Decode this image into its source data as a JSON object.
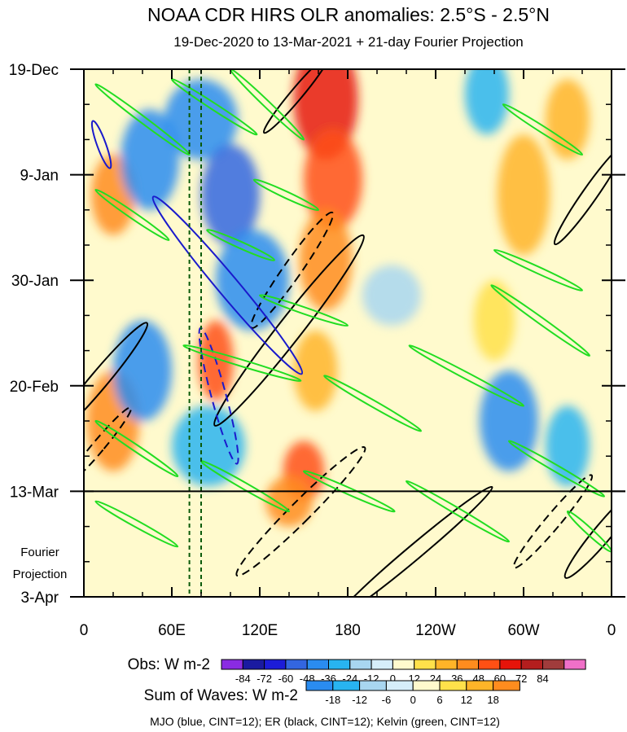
{
  "chart_data": {
    "type": "heatmap",
    "title": "NOAA CDR HIRS OLR anomalies: 2.5°S - 2.5°N",
    "subtitle": "19-Dec-2020 to 13-Mar-2021 + 21-day Fourier Projection",
    "x_ticks": [
      "0",
      "60E",
      "120E",
      "180",
      "120W",
      "60W",
      "0"
    ],
    "y_ticks": [
      "19-Dec",
      "9-Jan",
      "30-Jan",
      "20-Feb",
      "13-Mar",
      "3-Apr"
    ],
    "projection_label": [
      "Fourier",
      "Projection"
    ],
    "obs_legend": {
      "title": "Obs: W m-2",
      "levels": [
        "-84",
        "-72",
        "-60",
        "-48",
        "-36",
        "-24",
        "-12",
        "0",
        "12",
        "24",
        "36",
        "48",
        "60",
        "72",
        "84"
      ],
      "colors": [
        "#8a2be2",
        "#1a1aa0",
        "#1c1cd8",
        "#3366e0",
        "#2a8cf0",
        "#28b4f0",
        "#a8d6f0",
        "#d6eefa",
        "#fffacd",
        "#ffe14a",
        "#ffb428",
        "#ff8c1e",
        "#ff5014",
        "#e6140a",
        "#b41e1e",
        "#a03c3c",
        "#f070c8"
      ]
    },
    "wave_legend": {
      "title": "Sum of Waves: W m-2",
      "levels": [
        "-18",
        "-12",
        "-6",
        "0",
        "6",
        "12",
        "18"
      ],
      "colors": [
        "#2a8cf0",
        "#28b4f0",
        "#a8d6f0",
        "#d6eefa",
        "#fffacd",
        "#ffe14a",
        "#ffb428",
        "#ff8c1e"
      ]
    },
    "footer": "MJO (blue, CINT=12); ER (black, CINT=12); Kelvin (green, CINT=12)",
    "features": [
      {
        "lon": 165,
        "day": 6,
        "value": 60,
        "wlon": 22,
        "wday": 12
      },
      {
        "lon": 170,
        "day": 22,
        "value": 55,
        "wlon": 20,
        "wday": 10
      },
      {
        "lon": 165,
        "day": 38,
        "value": 45,
        "wlon": 18,
        "wday": 10
      },
      {
        "lon": 158,
        "day": 60,
        "value": 35,
        "wlon": 15,
        "wday": 8
      },
      {
        "lon": 150,
        "day": 80,
        "value": 55,
        "wlon": 14,
        "wday": 6
      },
      {
        "lon": 140,
        "day": 86,
        "value": 40,
        "wlon": 16,
        "wday": 5
      },
      {
        "lon": 20,
        "day": 25,
        "value": 40,
        "wlon": 15,
        "wday": 8
      },
      {
        "lon": 20,
        "day": 70,
        "value": 45,
        "wlon": 18,
        "wday": 10
      },
      {
        "lon": 90,
        "day": 58,
        "value": 50,
        "wlon": 12,
        "wday": 8
      },
      {
        "lon": 300,
        "day": 25,
        "value": 30,
        "wlon": 18,
        "wday": 12
      },
      {
        "lon": 330,
        "day": 10,
        "value": 25,
        "wlon": 15,
        "wday": 8
      },
      {
        "lon": 280,
        "day": 50,
        "value": 20,
        "wlon": 14,
        "wday": 8
      },
      {
        "lon": 80,
        "day": 10,
        "value": -40,
        "wlon": 25,
        "wday": 8
      },
      {
        "lon": 45,
        "day": 18,
        "value": -45,
        "wlon": 20,
        "wday": 10
      },
      {
        "lon": 100,
        "day": 25,
        "value": -50,
        "wlon": 20,
        "wday": 10
      },
      {
        "lon": 115,
        "day": 42,
        "value": -40,
        "wlon": 25,
        "wday": 10
      },
      {
        "lon": 40,
        "day": 60,
        "value": -45,
        "wlon": 20,
        "wday": 10
      },
      {
        "lon": 85,
        "day": 75,
        "value": -35,
        "wlon": 25,
        "wday": 8
      },
      {
        "lon": 290,
        "day": 70,
        "value": -40,
        "wlon": 20,
        "wday": 10
      },
      {
        "lon": 330,
        "day": 75,
        "value": -30,
        "wlon": 15,
        "wday": 8
      },
      {
        "lon": 275,
        "day": 5,
        "value": -30,
        "wlon": 15,
        "wday": 8
      },
      {
        "lon": 210,
        "day": 45,
        "value": -20,
        "wlon": 20,
        "wday": 6
      }
    ],
    "mjo_contours": [
      {
        "cx": 98,
        "cy": 43,
        "rx": 7,
        "ry": 23,
        "rot": -40,
        "dash": false
      },
      {
        "cx": 92,
        "cy": 65,
        "rx": 5,
        "ry": 14,
        "rot": -15,
        "dash": true
      },
      {
        "cx": 12,
        "cy": 15,
        "rx": 3,
        "ry": 5,
        "rot": -20,
        "dash": false
      }
    ],
    "er_contours": [
      {
        "cx": 140,
        "cy": 52,
        "rx": 8,
        "ry": 24,
        "rot": 38,
        "dash": false
      },
      {
        "cx": 142,
        "cy": 40,
        "rx": 6,
        "ry": 14,
        "rot": 35,
        "dash": true
      },
      {
        "cx": 148,
        "cy": 88,
        "rx": 7,
        "ry": 18,
        "rot": 45,
        "dash": true
      },
      {
        "cx": 226,
        "cy": 96,
        "rx": 5,
        "ry": 20,
        "rot": 50,
        "dash": false
      },
      {
        "cx": 345,
        "cy": 25,
        "rx": 5,
        "ry": 12,
        "rot": 35,
        "dash": false
      },
      {
        "cx": 10,
        "cy": 62,
        "rx": 6,
        "ry": 15,
        "rot": 40,
        "dash": false
      },
      {
        "cx": 10,
        "cy": 75,
        "rx": 4,
        "ry": 10,
        "rot": 40,
        "dash": true
      },
      {
        "cx": 145,
        "cy": 5,
        "rx": 4,
        "ry": 10,
        "rot": 40,
        "dash": false
      },
      {
        "cx": 320,
        "cy": 90,
        "rx": 5,
        "ry": 12,
        "rot": 40,
        "dash": true
      },
      {
        "cx": 355,
        "cy": 92,
        "rx": 6,
        "ry": 12,
        "rot": 40,
        "dash": false
      }
    ],
    "kelvin_contours": [
      {
        "lon0": 8,
        "day0": 3,
        "lon1": 72,
        "day1": 17
      },
      {
        "lon0": 8,
        "day0": 24,
        "lon1": 58,
        "day1": 34
      },
      {
        "lon0": 60,
        "day0": 2,
        "lon1": 118,
        "day1": 13
      },
      {
        "lon0": 100,
        "day0": 0,
        "lon1": 150,
        "day1": 14
      },
      {
        "lon0": 120,
        "day0": 45,
        "lon1": 180,
        "day1": 51
      },
      {
        "lon0": 68,
        "day0": 55,
        "lon1": 148,
        "day1": 62
      },
      {
        "lon0": 8,
        "day0": 70,
        "lon1": 64,
        "day1": 81
      },
      {
        "lon0": 80,
        "day0": 78,
        "lon1": 140,
        "day1": 88
      },
      {
        "lon0": 164,
        "day0": 61,
        "lon1": 230,
        "day1": 72
      },
      {
        "lon0": 222,
        "day0": 55,
        "lon1": 300,
        "day1": 67
      },
      {
        "lon0": 278,
        "day0": 43,
        "lon1": 345,
        "day1": 57
      },
      {
        "lon0": 290,
        "day0": 74,
        "lon1": 355,
        "day1": 85
      },
      {
        "lon0": 286,
        "day0": 7,
        "lon1": 340,
        "day1": 17
      },
      {
        "lon0": 280,
        "day0": 36,
        "lon1": 340,
        "day1": 44
      },
      {
        "lon0": 8,
        "day0": 86,
        "lon1": 64,
        "day1": 95
      },
      {
        "lon0": 330,
        "day0": 88,
        "lon1": 360,
        "day1": 96
      },
      {
        "lon0": 84,
        "day0": 32,
        "lon1": 130,
        "day1": 38
      },
      {
        "lon0": 150,
        "day0": 80,
        "lon1": 212,
        "day1": 88
      },
      {
        "lon0": 116,
        "day0": 22,
        "lon1": 160,
        "day1": 28
      },
      {
        "lon0": 220,
        "day0": 82,
        "lon1": 290,
        "day1": 94
      }
    ],
    "reference_lons": [
      72,
      80
    ],
    "x_range": [
      0,
      360
    ],
    "y_range": [
      0,
      105
    ]
  }
}
